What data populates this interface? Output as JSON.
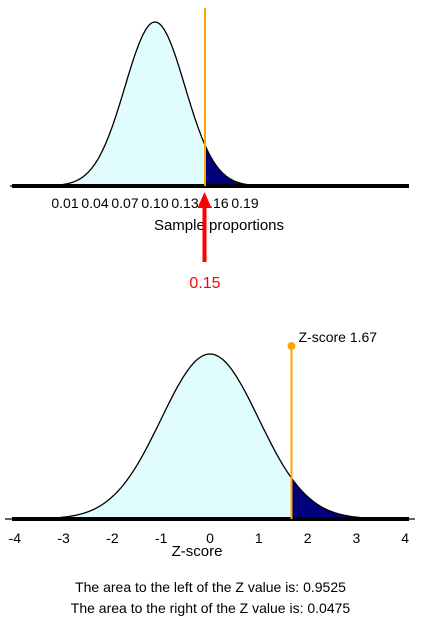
{
  "chart_data": [
    {
      "type": "area",
      "distribution": "normal",
      "mean": 0.1,
      "std_error": 0.03,
      "xlabel": "Sample proportions",
      "ticks": [
        "0.01",
        "0.04",
        "0.07",
        "0.10",
        "0.13",
        "0.16",
        "0.19"
      ],
      "tick_values": [
        0.01,
        0.04,
        0.07,
        0.1,
        0.13,
        0.16,
        0.19
      ],
      "marker_value": 0.15,
      "marker_label": "0.15",
      "shaded": "right-tail",
      "colors": {
        "left_fill": "#e0fcfc",
        "right_fill": "#00007a",
        "marker_line": "#ffa500",
        "arrow": "#ff0000",
        "curve": "#000000"
      }
    },
    {
      "type": "area",
      "distribution": "standard-normal",
      "xlabel": "Z-score",
      "ticks": [
        "-4",
        "-3",
        "-2",
        "-1",
        "0",
        "1",
        "2",
        "3",
        "4"
      ],
      "tick_values": [
        -4,
        -3,
        -2,
        -1,
        0,
        1,
        2,
        3,
        4
      ],
      "xlim": [
        -4,
        4
      ],
      "marker_value": 1.67,
      "marker_label": "Z-score 1.67",
      "shaded": "right-tail",
      "colors": {
        "left_fill": "#e0fcfc",
        "right_fill": "#00007a",
        "marker_line": "#ffa500",
        "curve": "#000000"
      }
    }
  ],
  "results": {
    "left_text": "The area to the left of the  Z value is: 0.9525",
    "right_text": "The area to the right of the Z value is: 0.0475"
  }
}
